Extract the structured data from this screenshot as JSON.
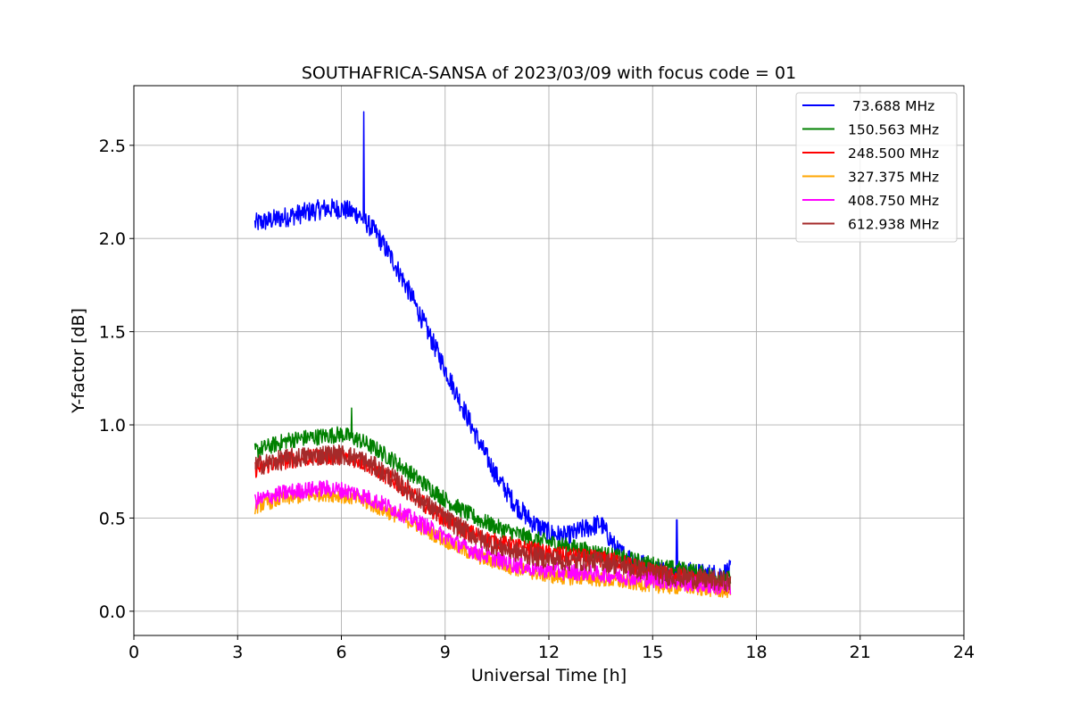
{
  "chart_data": {
    "type": "line",
    "title": "SOUTHAFRICA-SANSA of 2023/03/09 with focus code = 01",
    "xlabel": "Universal Time [h]",
    "ylabel": "Y-factor [dB]",
    "xlim": [
      0,
      24
    ],
    "ylim": [
      -0.13,
      2.82
    ],
    "xticks": [
      0,
      3,
      6,
      9,
      12,
      15,
      18,
      21,
      24
    ],
    "xtick_labels": [
      "0",
      "3",
      "6",
      "9",
      "12",
      "15",
      "18",
      "21",
      "24"
    ],
    "yticks": [
      0.0,
      0.5,
      1.0,
      1.5,
      2.0,
      2.5
    ],
    "ytick_labels": [
      "0.0",
      "0.5",
      "1.0",
      "1.5",
      "2.0",
      "2.5"
    ],
    "grid": true,
    "legend_position": "top-right",
    "series": [
      {
        "name": " 73.688 MHz",
        "color": "#0000ff",
        "x": [
          3.5,
          4.0,
          4.5,
          5.0,
          5.5,
          6.0,
          6.5,
          7.0,
          7.5,
          8.0,
          8.5,
          9.0,
          9.5,
          10.0,
          10.5,
          11.0,
          11.5,
          12.0,
          12.5,
          13.0,
          13.5,
          14.0,
          14.5,
          15.0,
          15.5,
          16.0,
          16.5,
          17.0,
          17.25
        ],
        "values": [
          2.08,
          2.1,
          2.12,
          2.14,
          2.16,
          2.16,
          2.13,
          2.03,
          1.88,
          1.7,
          1.5,
          1.3,
          1.1,
          0.9,
          0.72,
          0.58,
          0.48,
          0.42,
          0.4,
          0.44,
          0.47,
          0.32,
          0.27,
          0.23,
          0.21,
          0.21,
          0.2,
          0.2,
          0.22
        ],
        "noise": 0.055,
        "spikes": [
          [
            6.65,
            2.68
          ],
          [
            15.7,
            0.49
          ]
        ]
      },
      {
        "name": "150.563 MHz",
        "color": "#008000",
        "x": [
          3.5,
          4.0,
          4.5,
          5.0,
          5.5,
          6.0,
          6.5,
          7.0,
          7.5,
          8.0,
          8.5,
          9.0,
          9.5,
          10.0,
          10.5,
          11.0,
          11.5,
          12.0,
          12.5,
          13.0,
          13.5,
          14.0,
          14.5,
          15.0,
          15.5,
          16.0,
          16.5,
          17.0,
          17.25
        ],
        "values": [
          0.86,
          0.89,
          0.92,
          0.93,
          0.94,
          0.95,
          0.92,
          0.87,
          0.81,
          0.74,
          0.67,
          0.6,
          0.54,
          0.49,
          0.45,
          0.42,
          0.39,
          0.37,
          0.35,
          0.33,
          0.31,
          0.29,
          0.27,
          0.25,
          0.23,
          0.22,
          0.2,
          0.18,
          0.17
        ],
        "noise": 0.045,
        "spikes": [
          [
            6.3,
            1.09
          ]
        ]
      },
      {
        "name": "248.500 MHz",
        "color": "#ff0000",
        "x": [
          3.5,
          4.0,
          4.5,
          5.0,
          5.5,
          6.0,
          6.5,
          7.0,
          7.5,
          8.0,
          8.5,
          9.0,
          9.5,
          10.0,
          10.5,
          11.0,
          11.5,
          12.0,
          12.5,
          13.0,
          13.5,
          14.0,
          14.5,
          15.0,
          15.5,
          16.0,
          16.5,
          17.0,
          17.25
        ],
        "values": [
          0.76,
          0.79,
          0.81,
          0.82,
          0.83,
          0.83,
          0.81,
          0.76,
          0.7,
          0.63,
          0.56,
          0.49,
          0.44,
          0.4,
          0.37,
          0.35,
          0.33,
          0.31,
          0.3,
          0.29,
          0.28,
          0.27,
          0.24,
          0.21,
          0.19,
          0.18,
          0.16,
          0.14,
          0.13
        ],
        "noise": 0.045,
        "spikes": []
      },
      {
        "name": "327.375 MHz",
        "color": "#ffa500",
        "x": [
          3.5,
          4.0,
          4.5,
          5.0,
          5.5,
          6.0,
          6.5,
          7.0,
          7.5,
          8.0,
          8.5,
          9.0,
          9.5,
          10.0,
          10.5,
          11.0,
          11.5,
          12.0,
          12.5,
          13.0,
          13.5,
          14.0,
          14.5,
          15.0,
          15.5,
          16.0,
          16.5,
          17.0,
          17.25
        ],
        "values": [
          0.56,
          0.59,
          0.61,
          0.62,
          0.63,
          0.62,
          0.6,
          0.56,
          0.52,
          0.48,
          0.43,
          0.38,
          0.33,
          0.29,
          0.26,
          0.23,
          0.21,
          0.19,
          0.18,
          0.18,
          0.17,
          0.16,
          0.15,
          0.14,
          0.13,
          0.13,
          0.12,
          0.11,
          0.11
        ],
        "noise": 0.04,
        "spikes": []
      },
      {
        "name": "408.750 MHz",
        "color": "#ff00ff",
        "x": [
          3.5,
          4.0,
          4.5,
          5.0,
          5.5,
          6.0,
          6.5,
          7.0,
          7.5,
          8.0,
          8.5,
          9.0,
          9.5,
          10.0,
          10.5,
          11.0,
          11.5,
          12.0,
          12.5,
          13.0,
          13.5,
          14.0,
          14.5,
          15.0,
          15.5,
          16.0,
          16.5,
          17.0,
          17.25
        ],
        "values": [
          0.59,
          0.62,
          0.64,
          0.65,
          0.66,
          0.65,
          0.63,
          0.59,
          0.55,
          0.5,
          0.45,
          0.4,
          0.35,
          0.31,
          0.28,
          0.25,
          0.23,
          0.22,
          0.21,
          0.21,
          0.2,
          0.19,
          0.18,
          0.17,
          0.16,
          0.15,
          0.14,
          0.13,
          0.13
        ],
        "noise": 0.045,
        "spikes": []
      },
      {
        "name": "612.938 MHz",
        "color": "#a52a2a",
        "x": [
          3.5,
          4.0,
          4.5,
          5.0,
          5.5,
          6.0,
          6.5,
          7.0,
          7.5,
          8.0,
          8.5,
          9.0,
          9.5,
          10.0,
          10.5,
          11.0,
          11.5,
          12.0,
          12.5,
          13.0,
          13.5,
          14.0,
          14.5,
          15.0,
          15.5,
          16.0,
          16.5,
          17.0,
          17.25
        ],
        "values": [
          0.78,
          0.8,
          0.82,
          0.83,
          0.84,
          0.84,
          0.82,
          0.77,
          0.71,
          0.64,
          0.57,
          0.5,
          0.44,
          0.39,
          0.35,
          0.32,
          0.3,
          0.28,
          0.27,
          0.27,
          0.27,
          0.25,
          0.23,
          0.21,
          0.19,
          0.18,
          0.17,
          0.16,
          0.16
        ],
        "noise": 0.055,
        "spikes": []
      }
    ]
  }
}
